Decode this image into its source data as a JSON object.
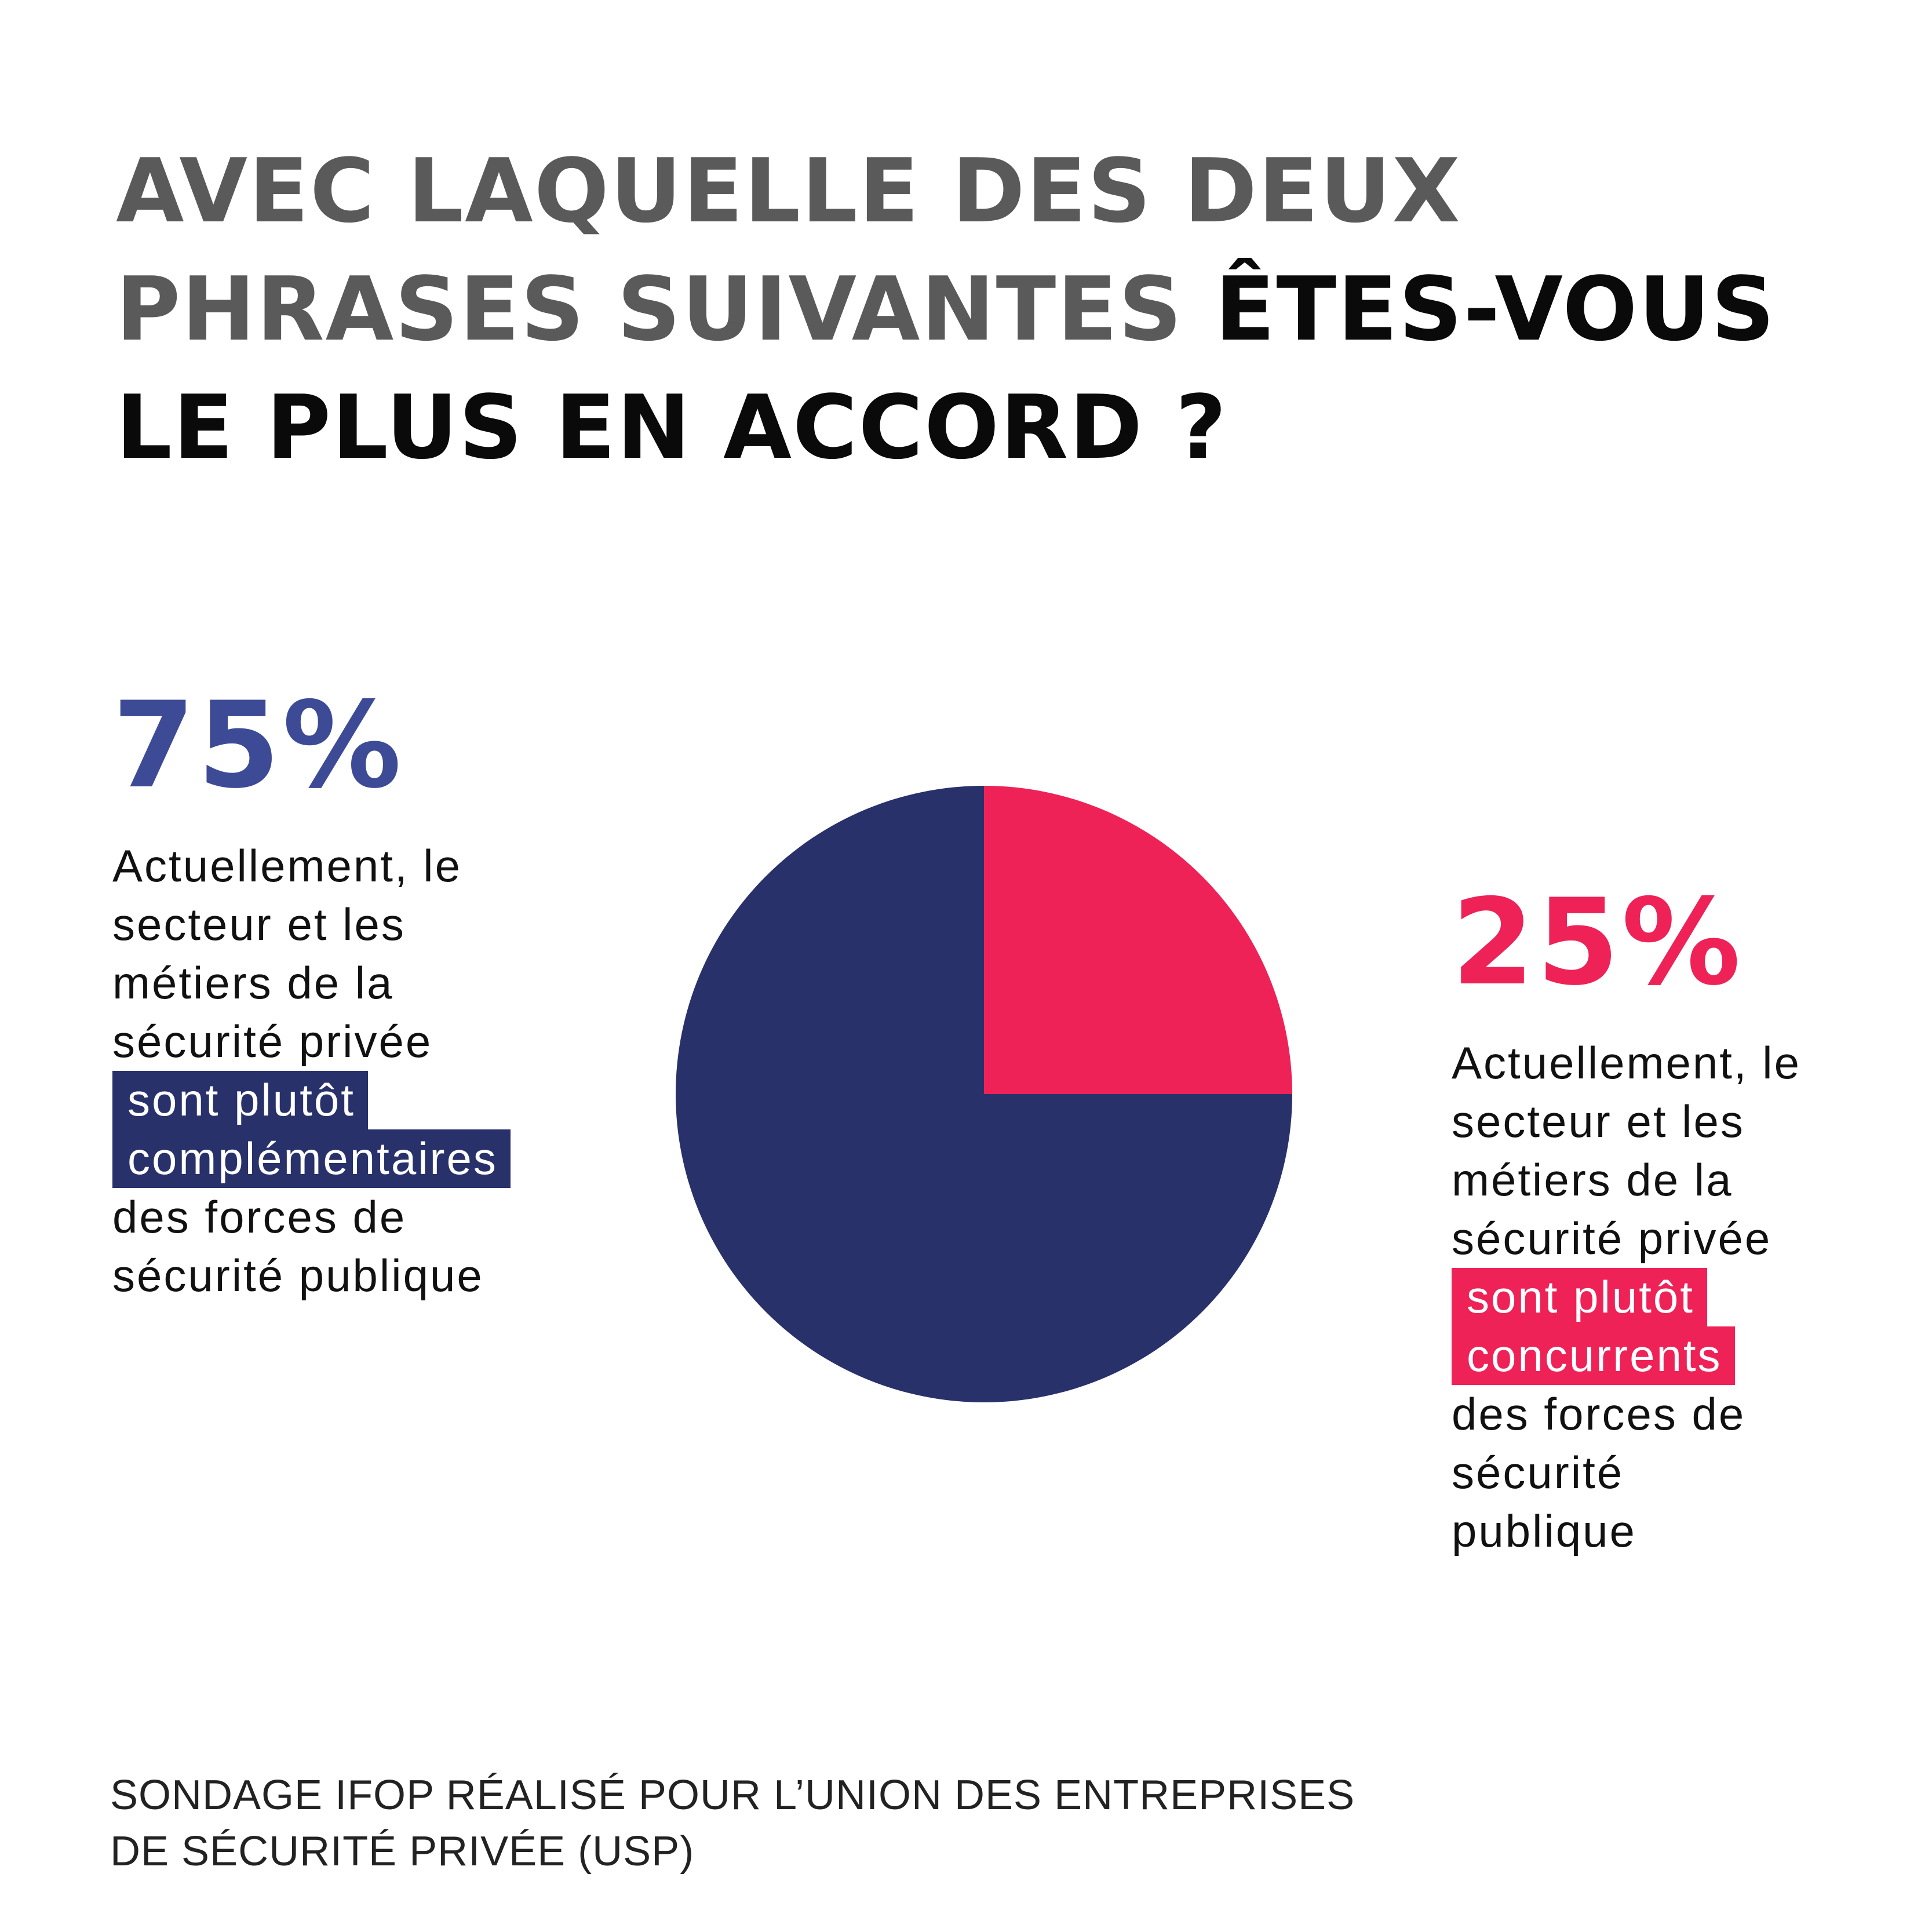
{
  "title": {
    "line1": "AVEC LAQUELLE DES DEUX",
    "line2_part1": "PHRASES SUIVANTES ",
    "line2_part2": "ÊTES-VOUS",
    "line3": "LE PLUS EN ACCORD ?"
  },
  "chart_data": {
    "type": "pie",
    "title": "AVEC LAQUELLE DES DEUX PHRASES SUIVANTES ÊTES-VOUS LE PLUS EN ACCORD ?",
    "slices": [
      {
        "label": "Actuellement, le secteur et les métiers de la sécurité privée sont plutôt complémentaires des forces de sécurité publique",
        "value": 75,
        "value_label": "75%",
        "color": "#29316b"
      },
      {
        "label": "Actuellement, le secteur et les métiers de la sécurité privée sont plutôt concurrents des forces de sécurité publique",
        "value": 25,
        "value_label": "25%",
        "color": "#ee2257"
      }
    ],
    "legend": "none"
  },
  "left_block": {
    "percent": "75%",
    "line1": "Actuellement, le",
    "line2": "secteur et les",
    "line3": "métiers de la",
    "line4": "sécurité privée",
    "highlight1": "sont plutôt",
    "highlight2": "complémentaires",
    "line5": "des forces de",
    "line6": "sécurité publique",
    "percent_color": "#3d4b96",
    "highlight_color": "#29316b"
  },
  "right_block": {
    "percent": "25%",
    "line1": "Actuellement, le",
    "line2": "secteur et les",
    "line3": "métiers de la",
    "line4": "sécurité privée",
    "highlight1": "sont plutôt",
    "highlight2": "concurrents",
    "line5": "des forces de",
    "line6": "sécurité",
    "line7": "publique",
    "percent_color": "#ee2257",
    "highlight_color": "#ee2257"
  },
  "source": {
    "line1": "SONDAGE IFOP RÉALISÉ POUR L’UNION DES ENTREPRISES",
    "line2": "DE SÉCURITÉ PRIVÉE (USP)"
  }
}
